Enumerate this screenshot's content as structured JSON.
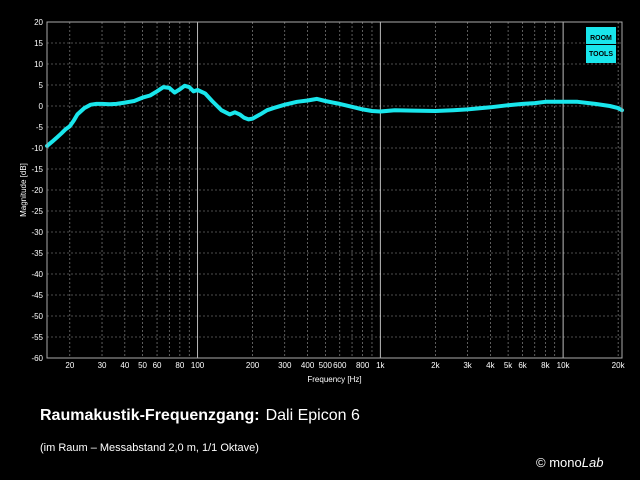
{
  "chart_data": {
    "type": "line",
    "xlabel": "Frequency [Hz]",
    "ylabel": "Magnitude [dB]",
    "xscale": "log",
    "xlim": [
      15,
      21000
    ],
    "ylim": [
      -60,
      20
    ],
    "grid": true,
    "x_ticks": [
      {
        "value": 20,
        "label": "20"
      },
      {
        "value": 30,
        "label": "30"
      },
      {
        "value": 40,
        "label": "40"
      },
      {
        "value": 50,
        "label": "50"
      },
      {
        "value": 60,
        "label": "60"
      },
      {
        "value": 80,
        "label": "80"
      },
      {
        "value": 100,
        "label": "100"
      },
      {
        "value": 200,
        "label": "200"
      },
      {
        "value": 300,
        "label": "300"
      },
      {
        "value": 400,
        "label": "400"
      },
      {
        "value": 500,
        "label": "500"
      },
      {
        "value": 600,
        "label": "600"
      },
      {
        "value": 800,
        "label": "800"
      },
      {
        "value": 1000,
        "label": "1k"
      },
      {
        "value": 2000,
        "label": "2k"
      },
      {
        "value": 3000,
        "label": "3k"
      },
      {
        "value": 4000,
        "label": "4k"
      },
      {
        "value": 5000,
        "label": "5k"
      },
      {
        "value": 6000,
        "label": "6k"
      },
      {
        "value": 8000,
        "label": "8k"
      },
      {
        "value": 10000,
        "label": "10k"
      },
      {
        "value": 20000,
        "label": "20k"
      }
    ],
    "y_ticks": [
      20,
      15,
      10,
      5,
      0,
      -5,
      -10,
      -15,
      -20,
      -25,
      -30,
      -35,
      -40,
      -45,
      -50,
      -55,
      -60
    ],
    "series": [
      {
        "color": "#19e6ec",
        "x": [
          15,
          16,
          17,
          18,
          19,
          20,
          21,
          22,
          24,
          26,
          28,
          30,
          33,
          36,
          40,
          45,
          50,
          55,
          60,
          65,
          70,
          75,
          80,
          85,
          90,
          95,
          100,
          110,
          120,
          135,
          150,
          160,
          170,
          180,
          190,
          200,
          220,
          240,
          260,
          300,
          350,
          400,
          450,
          500,
          550,
          600,
          700,
          800,
          900,
          1000,
          1200,
          1500,
          2000,
          2500,
          3000,
          4000,
          5000,
          6000,
          7000,
          8000,
          10000,
          12000,
          15000,
          18000,
          20000,
          21000
        ],
        "y": [
          -9.5,
          -8.5,
          -7.5,
          -6.5,
          -5.5,
          -4.8,
          -3.5,
          -2,
          -0.5,
          0.3,
          0.5,
          0.5,
          0.4,
          0.5,
          0.8,
          1.2,
          2,
          2.5,
          3.5,
          4.5,
          4.3,
          3.2,
          4,
          4.8,
          4.5,
          3.5,
          3.8,
          3,
          1.2,
          -1,
          -2,
          -1.5,
          -2,
          -2.8,
          -3.2,
          -3,
          -2,
          -1,
          -0.5,
          0.3,
          1,
          1.3,
          1.7,
          1.2,
          0.8,
          0.5,
          -0.2,
          -0.8,
          -1.2,
          -1.3,
          -1,
          -1.1,
          -1.2,
          -1,
          -0.8,
          -0.3,
          0.2,
          0.5,
          0.7,
          1,
          1,
          1,
          0.5,
          0,
          -0.5,
          -1
        ]
      }
    ]
  },
  "logo": {
    "line1": "ROOM",
    "line2": "TOOLS"
  },
  "caption": {
    "title": "Raumakustik-Frequenzgang:",
    "model": "Dali Epicon 6",
    "subtitle": "(im Raum – Messabstand 2,0 m, 1/1 Oktave)",
    "copyright_symbol": "©",
    "copyright_word": "mono",
    "copyright_word_italic": "Lab"
  }
}
